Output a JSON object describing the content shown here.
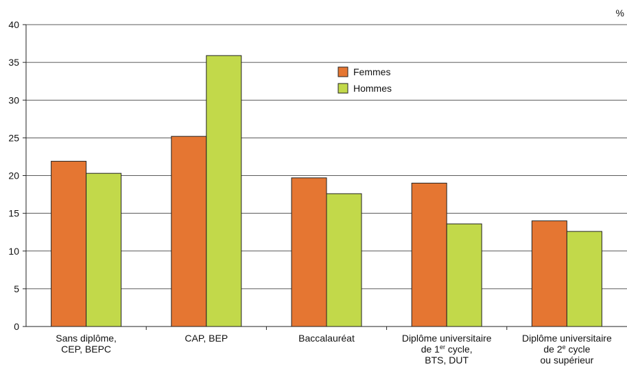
{
  "chart_data": {
    "type": "bar",
    "unit": "%",
    "categories": [
      [
        "Sans diplôme,",
        "CEP, BEPC"
      ],
      [
        "CAP, BEP"
      ],
      [
        "Baccalauréat"
      ],
      [
        "Diplôme universitaire",
        "de 1|er| cycle,",
        "BTS, DUT"
      ],
      [
        "Diplôme universitaire",
        "de 2|e| cycle",
        "ou supérieur"
      ]
    ],
    "series": [
      {
        "name": "Femmes",
        "color": "#e57632",
        "values": [
          21.9,
          25.2,
          19.7,
          19.0,
          14.0
        ]
      },
      {
        "name": "Hommes",
        "color": "#c2d94a",
        "values": [
          20.3,
          35.9,
          17.6,
          13.6,
          12.6
        ]
      }
    ],
    "ylim": [
      0,
      40
    ],
    "yticks": [
      0,
      5,
      10,
      15,
      20,
      25,
      30,
      35,
      40
    ],
    "grid": true,
    "legend_position": "top-center"
  }
}
